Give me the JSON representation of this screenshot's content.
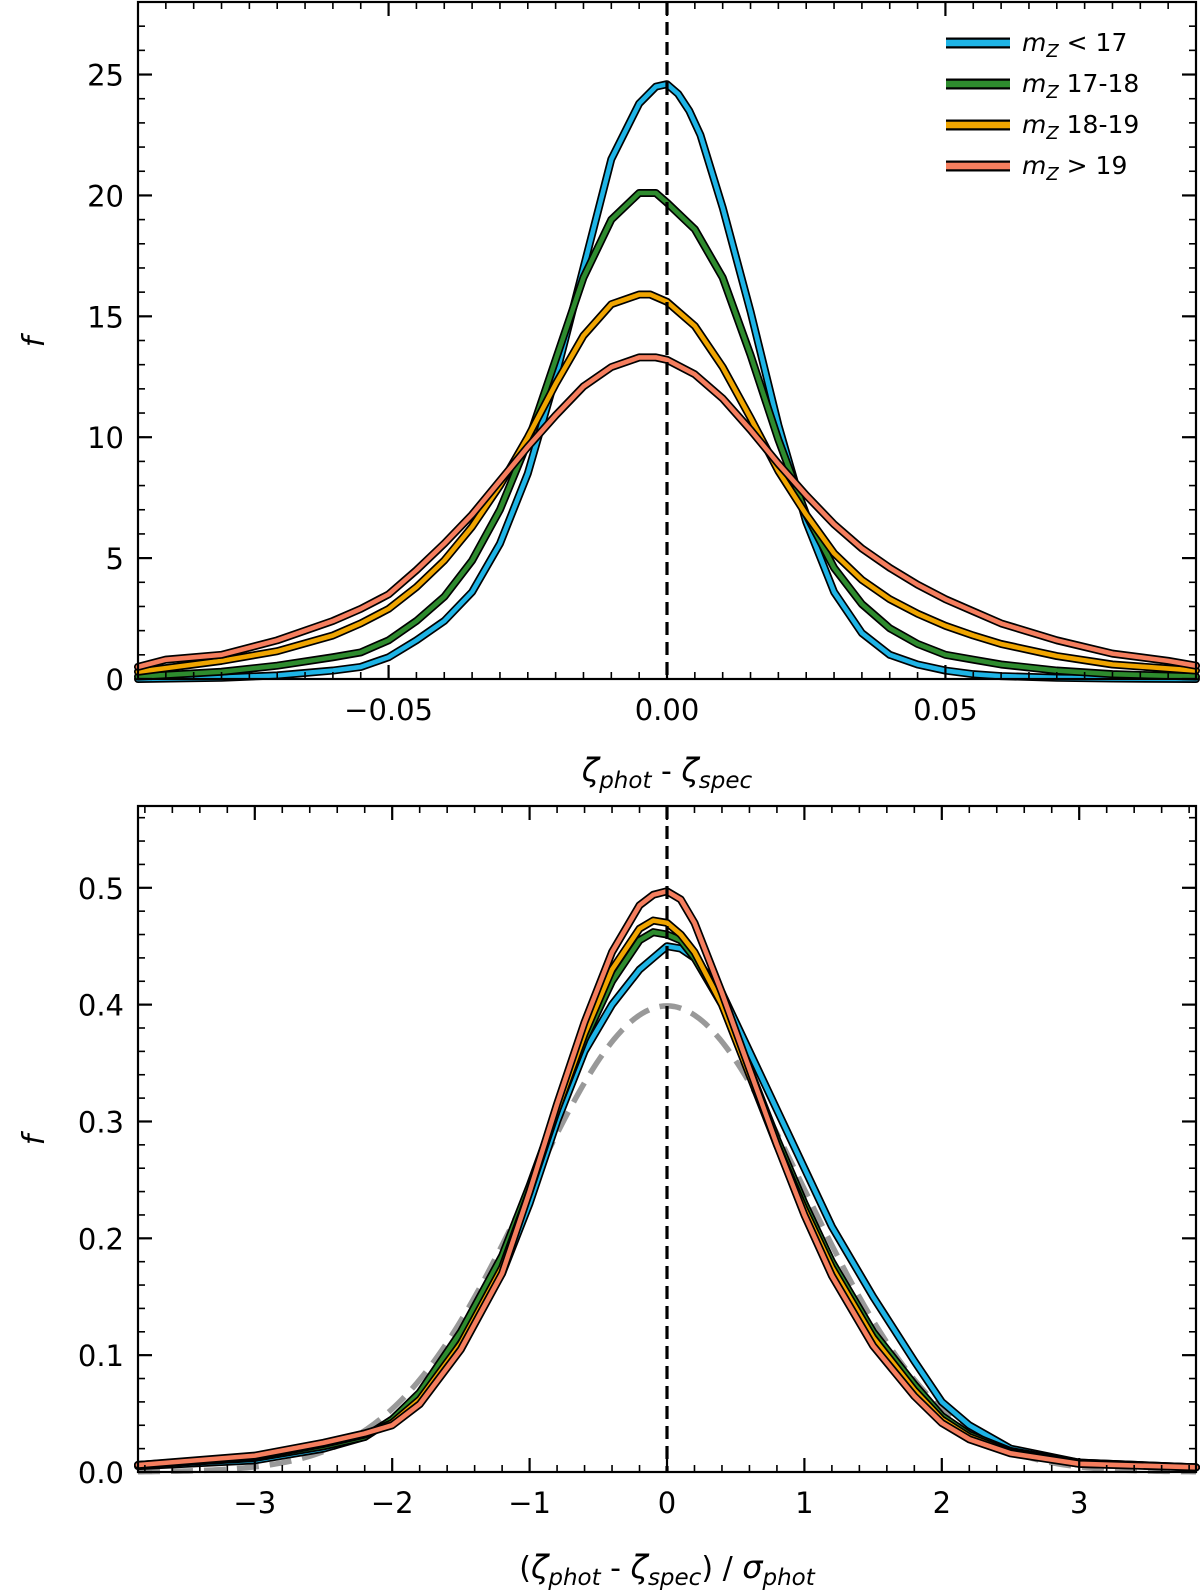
{
  "chart_data": [
    {
      "type": "line",
      "panel": "top",
      "xlabel": {
        "sym1": "ζ",
        "sub1": "phot",
        "mid": " - ",
        "sym2": "ζ",
        "sub2": "spec"
      },
      "ylabel": "f",
      "xlim": [
        -0.095,
        0.095
      ],
      "ylim": [
        0,
        28
      ],
      "xticks": [
        -0.05,
        0.0,
        0.05
      ],
      "xtick_labels": [
        "−0.05",
        "0.00",
        "0.05"
      ],
      "yticks": [
        0,
        5,
        10,
        15,
        20,
        25
      ],
      "ytick_labels": [
        "0",
        "5",
        "10",
        "15",
        "20",
        "25"
      ],
      "vline": {
        "x": 0,
        "style": "dashed",
        "color": "#000000"
      },
      "legend": {
        "position": "top-right"
      },
      "series": [
        {
          "name_prefix": "m",
          "name_sub": "Z",
          "name_suffix": " < 17",
          "color": "#1eb4e6",
          "x": [
            -0.095,
            -0.08,
            -0.07,
            -0.06,
            -0.055,
            -0.05,
            -0.045,
            -0.04,
            -0.035,
            -0.03,
            -0.025,
            -0.02,
            -0.015,
            -0.01,
            -0.005,
            -0.002,
            0.0,
            0.002,
            0.004,
            0.006,
            0.01,
            0.015,
            0.02,
            0.025,
            0.03,
            0.035,
            0.04,
            0.045,
            0.05,
            0.055,
            0.06,
            0.07,
            0.08,
            0.095
          ],
          "y": [
            0.0,
            0.05,
            0.15,
            0.35,
            0.5,
            0.9,
            1.6,
            2.4,
            3.6,
            5.6,
            8.5,
            12.5,
            17.0,
            21.5,
            23.8,
            24.5,
            24.6,
            24.2,
            23.5,
            22.5,
            19.5,
            15.2,
            10.5,
            6.5,
            3.6,
            1.9,
            1.0,
            0.6,
            0.35,
            0.2,
            0.12,
            0.05,
            0.02,
            0.0
          ]
        },
        {
          "name_prefix": "m",
          "name_sub": "Z",
          "name_suffix": " 17-18",
          "color": "#2e8b2e",
          "x": [
            -0.095,
            -0.08,
            -0.07,
            -0.06,
            -0.055,
            -0.05,
            -0.045,
            -0.04,
            -0.035,
            -0.03,
            -0.025,
            -0.02,
            -0.015,
            -0.01,
            -0.005,
            -0.002,
            0.0,
            0.005,
            0.01,
            0.015,
            0.02,
            0.025,
            0.03,
            0.035,
            0.04,
            0.045,
            0.05,
            0.055,
            0.06,
            0.07,
            0.08,
            0.095
          ],
          "y": [
            0.1,
            0.3,
            0.55,
            0.9,
            1.1,
            1.6,
            2.4,
            3.4,
            4.9,
            7.0,
            9.8,
            13.2,
            16.6,
            19.0,
            20.1,
            20.1,
            19.7,
            18.6,
            16.6,
            13.4,
            9.9,
            6.8,
            4.6,
            3.1,
            2.1,
            1.45,
            1.0,
            0.8,
            0.6,
            0.35,
            0.2,
            0.1
          ]
        },
        {
          "name_prefix": "m",
          "name_sub": "Z",
          "name_suffix": " 18-19",
          "color": "#f0a500",
          "x": [
            -0.095,
            -0.08,
            -0.07,
            -0.06,
            -0.055,
            -0.05,
            -0.045,
            -0.04,
            -0.035,
            -0.03,
            -0.025,
            -0.02,
            -0.015,
            -0.01,
            -0.005,
            -0.003,
            0.0,
            0.005,
            0.01,
            0.015,
            0.02,
            0.025,
            0.03,
            0.035,
            0.04,
            0.045,
            0.05,
            0.055,
            0.06,
            0.07,
            0.08,
            0.095
          ],
          "y": [
            0.3,
            0.75,
            1.15,
            1.8,
            2.3,
            2.9,
            3.8,
            4.9,
            6.3,
            8.0,
            10.0,
            12.2,
            14.2,
            15.5,
            15.9,
            15.9,
            15.6,
            14.6,
            12.9,
            10.8,
            8.6,
            6.8,
            5.2,
            4.1,
            3.3,
            2.7,
            2.2,
            1.8,
            1.45,
            0.95,
            0.6,
            0.35
          ]
        },
        {
          "name_prefix": "m",
          "name_sub": "Z",
          "name_suffix": " > 19",
          "color": "#f57e5e",
          "x": [
            -0.095,
            -0.09,
            -0.08,
            -0.07,
            -0.06,
            -0.055,
            -0.05,
            -0.045,
            -0.04,
            -0.035,
            -0.03,
            -0.025,
            -0.02,
            -0.015,
            -0.01,
            -0.005,
            -0.002,
            0.0,
            0.005,
            0.01,
            0.015,
            0.02,
            0.025,
            0.03,
            0.035,
            0.04,
            0.045,
            0.05,
            0.055,
            0.06,
            0.07,
            0.08,
            0.09,
            0.095
          ],
          "y": [
            0.5,
            0.8,
            1.0,
            1.6,
            2.4,
            2.9,
            3.5,
            4.5,
            5.6,
            6.8,
            8.2,
            9.6,
            10.9,
            12.1,
            12.9,
            13.3,
            13.3,
            13.2,
            12.6,
            11.6,
            10.3,
            8.9,
            7.6,
            6.4,
            5.4,
            4.6,
            3.9,
            3.3,
            2.8,
            2.3,
            1.6,
            1.05,
            0.75,
            0.55
          ]
        }
      ]
    },
    {
      "type": "line",
      "panel": "bottom",
      "xlabel": {
        "pre": "(",
        "sym1": "ζ",
        "sub1": "phot",
        "mid": " - ",
        "sym2": "ζ",
        "sub2": "spec",
        "post": ") / ",
        "sym3": "σ",
        "sub3": "phot"
      },
      "ylabel": "f",
      "xlim": [
        -3.85,
        3.85
      ],
      "ylim": [
        0,
        0.57
      ],
      "xticks": [
        -3,
        -2,
        -1,
        0,
        1,
        2,
        3
      ],
      "xtick_labels": [
        "−3",
        "−2",
        "−1",
        "0",
        "1",
        "2",
        "3"
      ],
      "yticks": [
        0,
        0.1,
        0.2,
        0.3,
        0.4,
        0.5
      ],
      "ytick_labels": [
        "0.0",
        "0.1",
        "0.2",
        "0.3",
        "0.4",
        "0.5"
      ],
      "vline": {
        "x": 0,
        "style": "dashed",
        "color": "#000000"
      },
      "reference": {
        "name": "unit Gaussian",
        "mean": 0,
        "sigma": 1,
        "color": "#999999",
        "style": "dashed"
      },
      "series": [
        {
          "name_suffix": " < 17",
          "color": "#1eb4e6",
          "x": [
            -3.85,
            -3.0,
            -2.5,
            -2.2,
            -2.0,
            -1.8,
            -1.5,
            -1.2,
            -1.0,
            -0.8,
            -0.6,
            -0.4,
            -0.2,
            -0.1,
            0.0,
            0.1,
            0.2,
            0.4,
            0.6,
            0.8,
            1.0,
            1.2,
            1.5,
            1.8,
            2.0,
            2.2,
            2.5,
            3.0,
            3.85
          ],
          "y": [
            0.005,
            0.01,
            0.02,
            0.03,
            0.045,
            0.065,
            0.11,
            0.17,
            0.23,
            0.3,
            0.36,
            0.4,
            0.43,
            0.44,
            0.45,
            0.448,
            0.44,
            0.41,
            0.36,
            0.31,
            0.26,
            0.21,
            0.15,
            0.095,
            0.06,
            0.04,
            0.02,
            0.008,
            0.004
          ]
        },
        {
          "name_suffix": " 17-18",
          "color": "#2e8b2e",
          "x": [
            -3.85,
            -3.0,
            -2.5,
            -2.2,
            -2.0,
            -1.8,
            -1.5,
            -1.2,
            -1.0,
            -0.8,
            -0.6,
            -0.4,
            -0.2,
            -0.1,
            0.0,
            0.1,
            0.2,
            0.4,
            0.6,
            0.8,
            1.0,
            1.2,
            1.5,
            1.8,
            2.0,
            2.2,
            2.5,
            3.0,
            3.85
          ],
          "y": [
            0.006,
            0.012,
            0.022,
            0.03,
            0.045,
            0.068,
            0.12,
            0.185,
            0.245,
            0.31,
            0.37,
            0.42,
            0.455,
            0.462,
            0.46,
            0.455,
            0.44,
            0.4,
            0.345,
            0.285,
            0.23,
            0.18,
            0.12,
            0.075,
            0.048,
            0.032,
            0.018,
            0.008,
            0.004
          ]
        },
        {
          "name_suffix": " 18-19",
          "color": "#f0a500",
          "x": [
            -3.85,
            -3.0,
            -2.5,
            -2.2,
            -2.0,
            -1.8,
            -1.5,
            -1.2,
            -1.0,
            -0.8,
            -0.6,
            -0.4,
            -0.2,
            -0.1,
            0.0,
            0.1,
            0.2,
            0.4,
            0.6,
            0.8,
            1.0,
            1.2,
            1.5,
            1.8,
            2.0,
            2.2,
            2.5,
            3.0,
            3.85
          ],
          "y": [
            0.006,
            0.013,
            0.024,
            0.032,
            0.042,
            0.062,
            0.11,
            0.175,
            0.24,
            0.31,
            0.375,
            0.43,
            0.465,
            0.472,
            0.47,
            0.46,
            0.445,
            0.4,
            0.34,
            0.28,
            0.225,
            0.175,
            0.115,
            0.07,
            0.045,
            0.03,
            0.017,
            0.007,
            0.004
          ]
        },
        {
          "name_suffix": " > 19",
          "color": "#f57e5e",
          "x": [
            -3.85,
            -3.0,
            -2.5,
            -2.2,
            -2.0,
            -1.8,
            -1.5,
            -1.2,
            -1.0,
            -0.8,
            -0.6,
            -0.4,
            -0.2,
            -0.1,
            0.0,
            0.1,
            0.2,
            0.4,
            0.6,
            0.8,
            1.0,
            1.2,
            1.5,
            1.8,
            2.0,
            2.2,
            2.5,
            3.0,
            3.85
          ],
          "y": [
            0.006,
            0.014,
            0.025,
            0.033,
            0.04,
            0.058,
            0.105,
            0.17,
            0.24,
            0.315,
            0.385,
            0.445,
            0.485,
            0.494,
            0.497,
            0.49,
            0.47,
            0.41,
            0.345,
            0.28,
            0.22,
            0.168,
            0.108,
            0.065,
            0.042,
            0.028,
            0.016,
            0.007,
            0.004
          ]
        }
      ]
    }
  ]
}
